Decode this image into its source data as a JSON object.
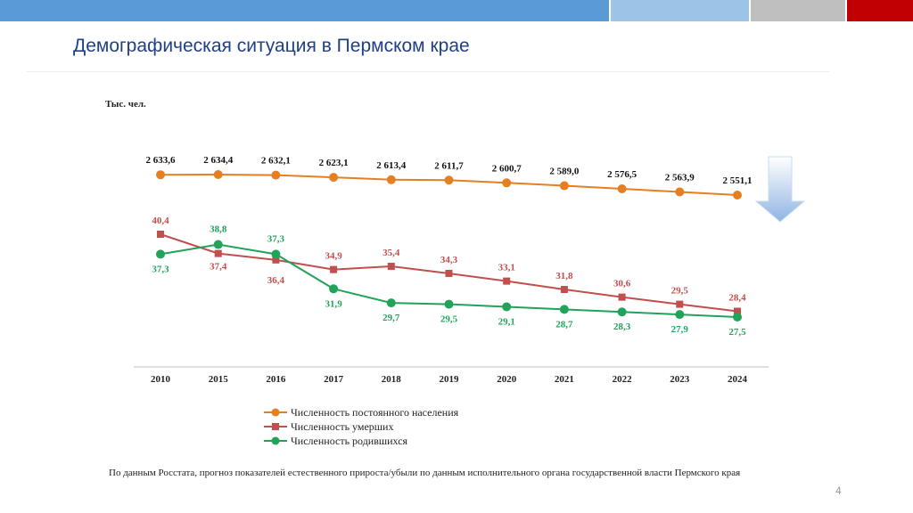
{
  "slide": {
    "title": "Демографическая ситуация в Пермском крае",
    "page_number": "4",
    "footnote": "По данным Росстата, прогноз показателей естественного прироста/убыли по данным исполнительного органа государственной власти Пермского края"
  },
  "colors": {
    "top_bar_1": "#5b9bd5",
    "top_bar_2": "#9dc3e6",
    "top_bar_3": "#bfbfbf",
    "top_bar_4": "#c00000",
    "title": "#1f3f86",
    "population": "#e67e22",
    "deaths": "#c0504d",
    "births": "#22a35a",
    "arrow": "#9dbfe6"
  },
  "chart_data": {
    "type": "line",
    "unit_label": "Тыс. чел.",
    "categories": [
      "2010",
      "2015",
      "2016",
      "2017",
      "2018",
      "2019",
      "2020",
      "2021",
      "2022",
      "2023",
      "2024"
    ],
    "series": [
      {
        "name": "Численность постоянного населения",
        "marker": "circle",
        "values": [
          2633.6,
          2634.4,
          2632.1,
          2623.1,
          2613.4,
          2611.7,
          2600.7,
          2589.0,
          2576.5,
          2563.9,
          2551.1
        ],
        "labels": [
          "2 633,6",
          "2 634,4",
          "2 632,1",
          "2 623,1",
          "2 613,4",
          "2 611,7",
          "2 600,7",
          "2 589,0",
          "2 576,5",
          "2 563,9",
          "2 551,1"
        ]
      },
      {
        "name": "Численность умерших",
        "marker": "square",
        "values": [
          40.4,
          37.4,
          36.4,
          34.9,
          35.4,
          34.3,
          33.1,
          31.8,
          30.6,
          29.5,
          28.4
        ],
        "labels": [
          "40,4",
          "37,4",
          "36,4",
          "34,9",
          "35,4",
          "34,3",
          "33,1",
          "31,8",
          "30,6",
          "29,5",
          "28,4"
        ]
      },
      {
        "name": "Численность родившихся",
        "marker": "circle",
        "values": [
          37.3,
          38.8,
          37.3,
          31.9,
          29.7,
          29.5,
          29.1,
          28.7,
          28.3,
          27.9,
          27.5
        ],
        "labels": [
          "37,3",
          "38,8",
          "37,3",
          "31,9",
          "29,7",
          "29,5",
          "29,1",
          "28,7",
          "28,3",
          "27,9",
          "27,5"
        ]
      }
    ],
    "legend_position": "bottom"
  }
}
